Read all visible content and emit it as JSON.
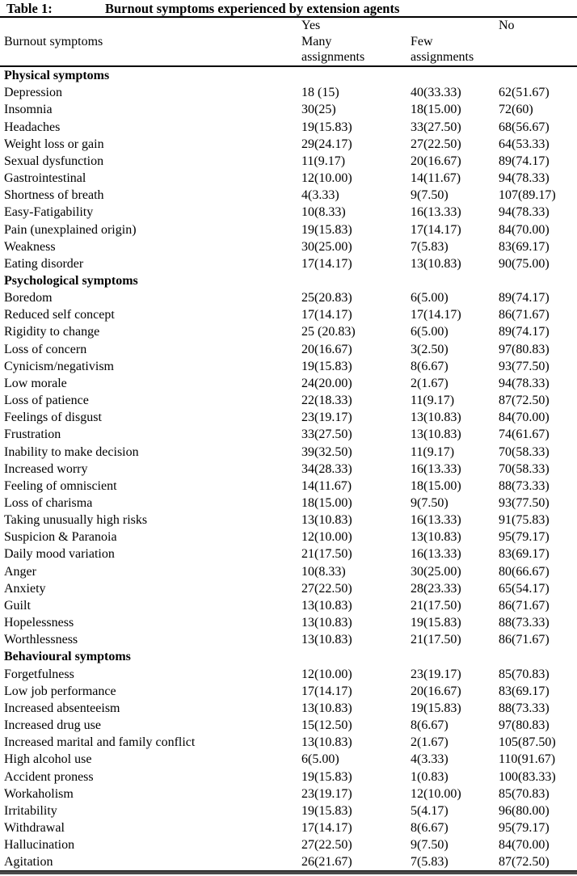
{
  "title": {
    "label": "Table 1:",
    "text": "Burnout symptoms experienced by extension agents"
  },
  "header": {
    "col1": "Burnout symptoms",
    "yes": "Yes",
    "no": "No",
    "many": "Many",
    "few": "Few",
    "assignments": "assignments"
  },
  "colors": {
    "text": "#000000",
    "background": "#ffffff",
    "rule": "#000000",
    "bottom_rule": "#4a4a4a"
  },
  "chart_data": {
    "type": "table",
    "title": "Table 1: Burnout symptoms experienced by extension agents",
    "columns": [
      "Burnout symptoms",
      "Yes — Many assignments",
      "Yes — Few assignments",
      "No"
    ],
    "sections": [
      {
        "name": "Physical symptoms",
        "rows": [
          [
            "Depression",
            "18 (15)",
            "40(33.33)",
            "62(51.67)"
          ],
          [
            "Insomnia",
            "30(25)",
            "18(15.00)",
            "72(60)"
          ],
          [
            "Headaches",
            "19(15.83)",
            "33(27.50)",
            "68(56.67)"
          ],
          [
            "Weight loss or gain",
            "29(24.17)",
            "27(22.50)",
            "64(53.33)"
          ],
          [
            "Sexual dysfunction",
            "11(9.17)",
            "20(16.67)",
            "89(74.17)"
          ],
          [
            "Gastrointestinal",
            "12(10.00)",
            "14(11.67)",
            "94(78.33)"
          ],
          [
            "Shortness of breath",
            "4(3.33)",
            "9(7.50)",
            "107(89.17)"
          ],
          [
            "Easy-Fatigability",
            "10(8.33)",
            "16(13.33)",
            "94(78.33)"
          ],
          [
            "Pain (unexplained origin)",
            "19(15.83)",
            "17(14.17)",
            "84(70.00)"
          ],
          [
            "Weakness",
            "30(25.00)",
            "7(5.83)",
            "83(69.17)"
          ],
          [
            "Eating disorder",
            "17(14.17)",
            "13(10.83)",
            "90(75.00)"
          ]
        ]
      },
      {
        "name": "Psychological symptoms",
        "rows": [
          [
            "Boredom",
            "25(20.83)",
            "6(5.00)",
            "89(74.17)"
          ],
          [
            "Reduced self concept",
            "17(14.17)",
            "17(14.17)",
            "86(71.67)"
          ],
          [
            "Rigidity to change",
            "25 (20.83)",
            "6(5.00)",
            "89(74.17)"
          ],
          [
            "Loss of concern",
            "20(16.67)",
            "3(2.50)",
            "97(80.83)"
          ],
          [
            "Cynicism/negativism",
            "19(15.83)",
            "8(6.67)",
            "93(77.50)"
          ],
          [
            "Low morale",
            "24(20.00)",
            "2(1.67)",
            "94(78.33)"
          ],
          [
            "Loss of patience",
            "22(18.33)",
            "11(9.17)",
            "87(72.50)"
          ],
          [
            "Feelings of disgust",
            "23(19.17)",
            "13(10.83)",
            "84(70.00)"
          ],
          [
            "Frustration",
            "33(27.50)",
            "13(10.83)",
            "74(61.67)"
          ],
          [
            "Inability to make decision",
            "39(32.50)",
            "11(9.17)",
            "70(58.33)"
          ],
          [
            "Increased worry",
            "34(28.33)",
            "16(13.33)",
            "70(58.33)"
          ],
          [
            "Feeling of omniscient",
            "14(11.67)",
            "18(15.00)",
            "88(73.33)"
          ],
          [
            "Loss of charisma",
            "18(15.00)",
            "9(7.50)",
            "93(77.50)"
          ],
          [
            "Taking unusually high risks",
            "13(10.83)",
            "16(13.33)",
            "91(75.83)"
          ],
          [
            "Suspicion & Paranoia",
            "12(10.00)",
            "13(10.83)",
            "95(79.17)"
          ],
          [
            "Daily mood variation",
            "21(17.50)",
            "16(13.33)",
            "83(69.17)"
          ],
          [
            "Anger",
            "10(8.33)",
            "30(25.00)",
            "80(66.67)"
          ],
          [
            "Anxiety",
            "27(22.50)",
            "28(23.33)",
            "65(54.17)"
          ],
          [
            "Guilt",
            "13(10.83)",
            "21(17.50)",
            "86(71.67)"
          ],
          [
            "Hopelessness",
            "13(10.83)",
            "19(15.83)",
            "88(73.33)"
          ],
          [
            "Worthlessness",
            "13(10.83)",
            "21(17.50)",
            "86(71.67)"
          ]
        ]
      },
      {
        "name": "Behavioural symptoms",
        "rows": [
          [
            "Forgetfulness",
            "12(10.00)",
            "23(19.17)",
            "85(70.83)"
          ],
          [
            "Low job performance",
            "17(14.17)",
            "20(16.67)",
            "83(69.17)"
          ],
          [
            "Increased absenteeism",
            "13(10.83)",
            "19(15.83)",
            "88(73.33)"
          ],
          [
            "Increased  drug use",
            "15(12.50)",
            "8(6.67)",
            "97(80.83)"
          ],
          [
            "Increased marital and family conflict",
            "13(10.83)",
            "2(1.67)",
            "105(87.50)"
          ],
          [
            "High alcohol use",
            "6(5.00)",
            "4(3.33)",
            "110(91.67)"
          ],
          [
            "Accident proness",
            "19(15.83)",
            "1(0.83)",
            "100(83.33)"
          ],
          [
            "Workaholism",
            "23(19.17)",
            "12(10.00)",
            "85(70.83)"
          ],
          [
            "Irritability",
            "19(15.83)",
            "5(4.17)",
            "96(80.00)"
          ],
          [
            "Withdrawal",
            "17(14.17)",
            "8(6.67)",
            "95(79.17)"
          ],
          [
            "Hallucination",
            "27(22.50)",
            "9(7.50)",
            "84(70.00)"
          ],
          [
            "Agitation",
            "26(21.67)",
            "7(5.83)",
            "87(72.50)"
          ]
        ]
      }
    ]
  }
}
